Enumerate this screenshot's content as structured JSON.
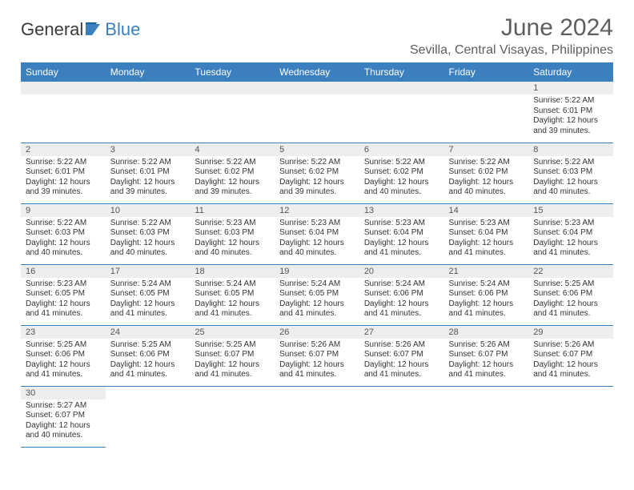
{
  "logo": {
    "text1": "General",
    "text2": "Blue"
  },
  "title": "June 2024",
  "location": "Sevilla, Central Visayas, Philippines",
  "header_bg": "#3c7fbf",
  "dayHeaders": [
    "Sunday",
    "Monday",
    "Tuesday",
    "Wednesday",
    "Thursday",
    "Friday",
    "Saturday"
  ],
  "weeks": [
    [
      null,
      null,
      null,
      null,
      null,
      null,
      {
        "n": "1",
        "sunrise": "Sunrise: 5:22 AM",
        "sunset": "Sunset: 6:01 PM",
        "daylight": "Daylight: 12 hours and 39 minutes."
      }
    ],
    [
      {
        "n": "2",
        "sunrise": "Sunrise: 5:22 AM",
        "sunset": "Sunset: 6:01 PM",
        "daylight": "Daylight: 12 hours and 39 minutes."
      },
      {
        "n": "3",
        "sunrise": "Sunrise: 5:22 AM",
        "sunset": "Sunset: 6:01 PM",
        "daylight": "Daylight: 12 hours and 39 minutes."
      },
      {
        "n": "4",
        "sunrise": "Sunrise: 5:22 AM",
        "sunset": "Sunset: 6:02 PM",
        "daylight": "Daylight: 12 hours and 39 minutes."
      },
      {
        "n": "5",
        "sunrise": "Sunrise: 5:22 AM",
        "sunset": "Sunset: 6:02 PM",
        "daylight": "Daylight: 12 hours and 39 minutes."
      },
      {
        "n": "6",
        "sunrise": "Sunrise: 5:22 AM",
        "sunset": "Sunset: 6:02 PM",
        "daylight": "Daylight: 12 hours and 40 minutes."
      },
      {
        "n": "7",
        "sunrise": "Sunrise: 5:22 AM",
        "sunset": "Sunset: 6:02 PM",
        "daylight": "Daylight: 12 hours and 40 minutes."
      },
      {
        "n": "8",
        "sunrise": "Sunrise: 5:22 AM",
        "sunset": "Sunset: 6:03 PM",
        "daylight": "Daylight: 12 hours and 40 minutes."
      }
    ],
    [
      {
        "n": "9",
        "sunrise": "Sunrise: 5:22 AM",
        "sunset": "Sunset: 6:03 PM",
        "daylight": "Daylight: 12 hours and 40 minutes."
      },
      {
        "n": "10",
        "sunrise": "Sunrise: 5:22 AM",
        "sunset": "Sunset: 6:03 PM",
        "daylight": "Daylight: 12 hours and 40 minutes."
      },
      {
        "n": "11",
        "sunrise": "Sunrise: 5:23 AM",
        "sunset": "Sunset: 6:03 PM",
        "daylight": "Daylight: 12 hours and 40 minutes."
      },
      {
        "n": "12",
        "sunrise": "Sunrise: 5:23 AM",
        "sunset": "Sunset: 6:04 PM",
        "daylight": "Daylight: 12 hours and 40 minutes."
      },
      {
        "n": "13",
        "sunrise": "Sunrise: 5:23 AM",
        "sunset": "Sunset: 6:04 PM",
        "daylight": "Daylight: 12 hours and 41 minutes."
      },
      {
        "n": "14",
        "sunrise": "Sunrise: 5:23 AM",
        "sunset": "Sunset: 6:04 PM",
        "daylight": "Daylight: 12 hours and 41 minutes."
      },
      {
        "n": "15",
        "sunrise": "Sunrise: 5:23 AM",
        "sunset": "Sunset: 6:04 PM",
        "daylight": "Daylight: 12 hours and 41 minutes."
      }
    ],
    [
      {
        "n": "16",
        "sunrise": "Sunrise: 5:23 AM",
        "sunset": "Sunset: 6:05 PM",
        "daylight": "Daylight: 12 hours and 41 minutes."
      },
      {
        "n": "17",
        "sunrise": "Sunrise: 5:24 AM",
        "sunset": "Sunset: 6:05 PM",
        "daylight": "Daylight: 12 hours and 41 minutes."
      },
      {
        "n": "18",
        "sunrise": "Sunrise: 5:24 AM",
        "sunset": "Sunset: 6:05 PM",
        "daylight": "Daylight: 12 hours and 41 minutes."
      },
      {
        "n": "19",
        "sunrise": "Sunrise: 5:24 AM",
        "sunset": "Sunset: 6:05 PM",
        "daylight": "Daylight: 12 hours and 41 minutes."
      },
      {
        "n": "20",
        "sunrise": "Sunrise: 5:24 AM",
        "sunset": "Sunset: 6:06 PM",
        "daylight": "Daylight: 12 hours and 41 minutes."
      },
      {
        "n": "21",
        "sunrise": "Sunrise: 5:24 AM",
        "sunset": "Sunset: 6:06 PM",
        "daylight": "Daylight: 12 hours and 41 minutes."
      },
      {
        "n": "22",
        "sunrise": "Sunrise: 5:25 AM",
        "sunset": "Sunset: 6:06 PM",
        "daylight": "Daylight: 12 hours and 41 minutes."
      }
    ],
    [
      {
        "n": "23",
        "sunrise": "Sunrise: 5:25 AM",
        "sunset": "Sunset: 6:06 PM",
        "daylight": "Daylight: 12 hours and 41 minutes."
      },
      {
        "n": "24",
        "sunrise": "Sunrise: 5:25 AM",
        "sunset": "Sunset: 6:06 PM",
        "daylight": "Daylight: 12 hours and 41 minutes."
      },
      {
        "n": "25",
        "sunrise": "Sunrise: 5:25 AM",
        "sunset": "Sunset: 6:07 PM",
        "daylight": "Daylight: 12 hours and 41 minutes."
      },
      {
        "n": "26",
        "sunrise": "Sunrise: 5:26 AM",
        "sunset": "Sunset: 6:07 PM",
        "daylight": "Daylight: 12 hours and 41 minutes."
      },
      {
        "n": "27",
        "sunrise": "Sunrise: 5:26 AM",
        "sunset": "Sunset: 6:07 PM",
        "daylight": "Daylight: 12 hours and 41 minutes."
      },
      {
        "n": "28",
        "sunrise": "Sunrise: 5:26 AM",
        "sunset": "Sunset: 6:07 PM",
        "daylight": "Daylight: 12 hours and 41 minutes."
      },
      {
        "n": "29",
        "sunrise": "Sunrise: 5:26 AM",
        "sunset": "Sunset: 6:07 PM",
        "daylight": "Daylight: 12 hours and 41 minutes."
      }
    ],
    [
      {
        "n": "30",
        "sunrise": "Sunrise: 5:27 AM",
        "sunset": "Sunset: 6:07 PM",
        "daylight": "Daylight: 12 hours and 40 minutes."
      },
      null,
      null,
      null,
      null,
      null,
      null
    ]
  ]
}
